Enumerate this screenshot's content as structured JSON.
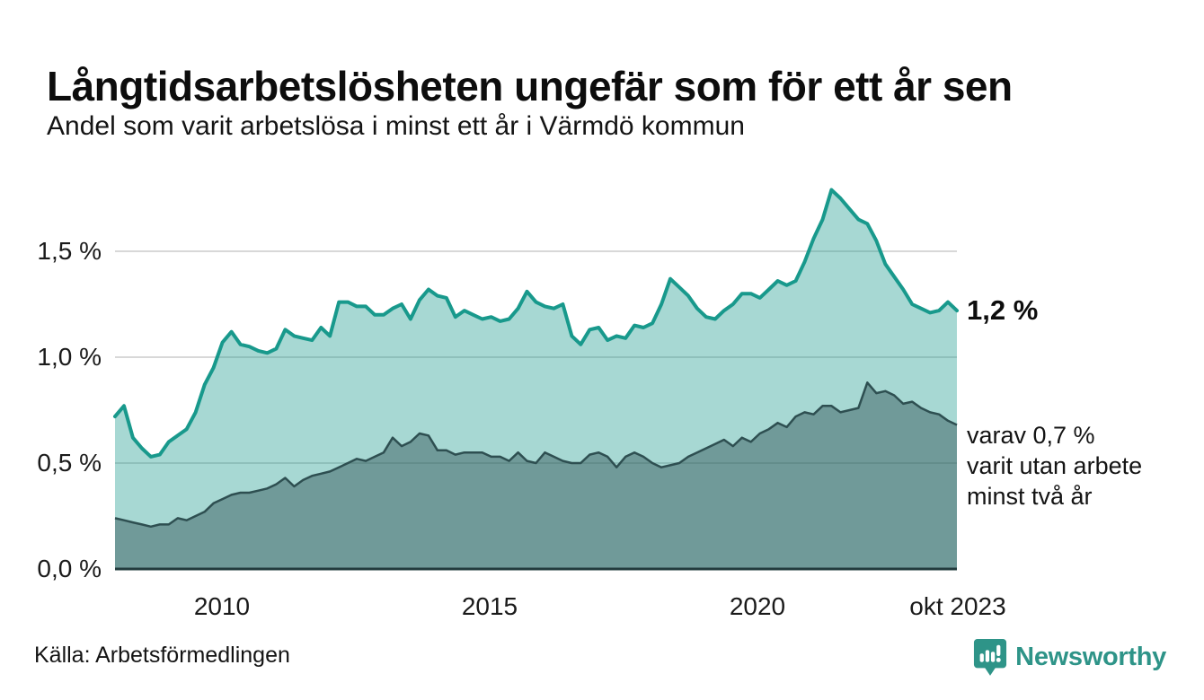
{
  "header": {
    "title": "Långtidsarbetslösheten ungefär som för ett år sen",
    "subtitle": "Andel som varit arbetslösa i minst ett år i Värmdö kommun"
  },
  "chart_data": {
    "type": "area",
    "title": "Långtidsarbetslösheten ungefär som för ett år sen",
    "subtitle": "Andel som varit arbetslösa i minst ett år i Värmdö kommun",
    "unit": "%",
    "x_start_year": 2008.0,
    "x_end_year": 2023.72,
    "x_tick_labels": [
      "2010",
      "2015",
      "2020",
      "okt 2023"
    ],
    "x_tick_years": [
      2010,
      2015,
      2020,
      2023.75
    ],
    "y_tick_labels": [
      "1,5 %",
      "1,0 %",
      "0,5 %",
      "0,0 %"
    ],
    "y_ticks": [
      1.5,
      1.0,
      0.5,
      0.0
    ],
    "ylim": [
      0,
      1.88
    ],
    "grid": true,
    "legend_position": "right-annotations",
    "colors": {
      "line_total": "#18998c",
      "fill_total": "#a2d4ce",
      "line_two_year": "#2e4f51",
      "fill_two_year": "#6d9a96",
      "gridline": "#d8d8d8",
      "baseline": "#223b3d"
    },
    "series": [
      {
        "name": "Andel arbetslösa minst ett år",
        "last_value_label": "1,2 %",
        "values": [
          0.72,
          0.77,
          0.62,
          0.57,
          0.53,
          0.54,
          0.6,
          0.63,
          0.66,
          0.74,
          0.87,
          0.95,
          1.07,
          1.12,
          1.06,
          1.05,
          1.03,
          1.02,
          1.04,
          1.13,
          1.1,
          1.09,
          1.08,
          1.14,
          1.1,
          1.26,
          1.26,
          1.24,
          1.24,
          1.2,
          1.2,
          1.23,
          1.25,
          1.18,
          1.27,
          1.32,
          1.29,
          1.28,
          1.19,
          1.22,
          1.2,
          1.18,
          1.19,
          1.17,
          1.18,
          1.23,
          1.31,
          1.26,
          1.24,
          1.23,
          1.25,
          1.1,
          1.06,
          1.13,
          1.14,
          1.08,
          1.1,
          1.09,
          1.15,
          1.14,
          1.16,
          1.25,
          1.37,
          1.33,
          1.29,
          1.23,
          1.19,
          1.18,
          1.22,
          1.25,
          1.3,
          1.3,
          1.28,
          1.32,
          1.36,
          1.34,
          1.36,
          1.45,
          1.56,
          1.65,
          1.79,
          1.75,
          1.7,
          1.65,
          1.63,
          1.55,
          1.44,
          1.38,
          1.32,
          1.25,
          1.23,
          1.21,
          1.22,
          1.26,
          1.22
        ]
      },
      {
        "name": "varav arbetslösa minst två år",
        "last_value_label": "0,7 %",
        "values": [
          0.24,
          0.23,
          0.22,
          0.21,
          0.2,
          0.21,
          0.21,
          0.24,
          0.23,
          0.25,
          0.27,
          0.31,
          0.33,
          0.35,
          0.36,
          0.36,
          0.37,
          0.38,
          0.4,
          0.43,
          0.39,
          0.42,
          0.44,
          0.45,
          0.46,
          0.48,
          0.5,
          0.52,
          0.51,
          0.53,
          0.55,
          0.62,
          0.58,
          0.6,
          0.64,
          0.63,
          0.56,
          0.56,
          0.54,
          0.55,
          0.55,
          0.55,
          0.53,
          0.53,
          0.51,
          0.55,
          0.51,
          0.5,
          0.55,
          0.53,
          0.51,
          0.5,
          0.5,
          0.54,
          0.55,
          0.53,
          0.48,
          0.53,
          0.55,
          0.53,
          0.5,
          0.48,
          0.49,
          0.5,
          0.53,
          0.55,
          0.57,
          0.59,
          0.61,
          0.58,
          0.62,
          0.6,
          0.64,
          0.66,
          0.69,
          0.67,
          0.72,
          0.74,
          0.73,
          0.77,
          0.77,
          0.74,
          0.75,
          0.76,
          0.88,
          0.83,
          0.84,
          0.82,
          0.78,
          0.79,
          0.76,
          0.74,
          0.73,
          0.7,
          0.68
        ]
      }
    ],
    "annotations": {
      "total": "1,2 %",
      "two_year_line1": "varav 0,7 %",
      "two_year_line2": "varit utan arbete",
      "two_year_line3": "minst två år"
    }
  },
  "footer": {
    "source": "Källa: Arbetsförmedlingen",
    "brand": "Newsworthy"
  }
}
